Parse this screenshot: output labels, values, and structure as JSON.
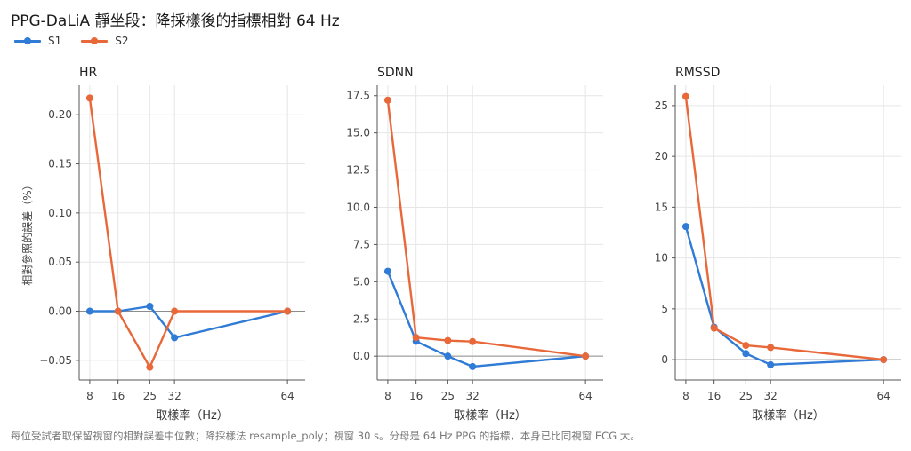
{
  "title": "PPG-DaLiA 靜坐段：降採樣後的指標相對 64 Hz",
  "legend": [
    {
      "name": "S1",
      "color": "#2f7bd6"
    },
    {
      "name": "S2",
      "color": "#e8683a"
    }
  ],
  "footnote": "每位受試者取保留視窗的相對誤差中位數；降採樣法 resample_poly；視窗 30 s。分母是 64 Hz PPG 的指標，本身已比同視窗 ECG 大。",
  "chart_data": [
    {
      "type": "line",
      "title": "HR",
      "xlabel": "取樣率（Hz）",
      "ylabel": "相對參照的誤差（%）",
      "x": [
        8,
        16,
        25,
        32,
        64
      ],
      "xticks": [
        "8",
        "16",
        "25",
        "32",
        "64"
      ],
      "xlim": [
        5,
        69
      ],
      "ylim": [
        -0.07,
        0.23
      ],
      "yticks": [
        -0.05,
        0.0,
        0.05,
        0.1,
        0.15,
        0.2
      ],
      "ytick_labels": [
        "−0.05",
        "0.00",
        "0.05",
        "0.10",
        "0.15",
        "0.20"
      ],
      "grid": true,
      "series": [
        {
          "name": "S1",
          "color": "#2f7bd6",
          "values": [
            0.0,
            0.0,
            0.005,
            -0.027,
            0.0
          ]
        },
        {
          "name": "S2",
          "color": "#e8683a",
          "values": [
            0.217,
            0.0,
            -0.057,
            0.0,
            0.0
          ]
        }
      ]
    },
    {
      "type": "line",
      "title": "SDNN",
      "xlabel": "取樣率（Hz）",
      "ylabel": "",
      "x": [
        8,
        16,
        25,
        32,
        64
      ],
      "xticks": [
        "8",
        "16",
        "25",
        "32",
        "64"
      ],
      "xlim": [
        5,
        69
      ],
      "ylim": [
        -1.6,
        18.2
      ],
      "yticks": [
        0.0,
        2.5,
        5.0,
        7.5,
        10.0,
        12.5,
        15.0,
        17.5
      ],
      "ytick_labels": [
        "0.0",
        "2.5",
        "5.0",
        "7.5",
        "10.0",
        "12.5",
        "15.0",
        "17.5"
      ],
      "grid": true,
      "series": [
        {
          "name": "S1",
          "color": "#2f7bd6",
          "values": [
            5.7,
            1.0,
            0.0,
            -0.7,
            0.0
          ]
        },
        {
          "name": "S2",
          "color": "#e8683a",
          "values": [
            17.2,
            1.25,
            1.05,
            0.98,
            0.0
          ]
        }
      ]
    },
    {
      "type": "line",
      "title": "RMSSD",
      "xlabel": "取樣率（Hz）",
      "ylabel": "",
      "x": [
        8,
        16,
        25,
        32,
        64
      ],
      "xticks": [
        "8",
        "16",
        "25",
        "32",
        "64"
      ],
      "xlim": [
        5,
        69
      ],
      "ylim": [
        -2,
        27
      ],
      "yticks": [
        0,
        5,
        10,
        15,
        20,
        25
      ],
      "ytick_labels": [
        "0",
        "5",
        "10",
        "15",
        "20",
        "25"
      ],
      "grid": true,
      "series": [
        {
          "name": "S1",
          "color": "#2f7bd6",
          "values": [
            13.1,
            3.2,
            0.6,
            -0.5,
            0.0
          ]
        },
        {
          "name": "S2",
          "color": "#e8683a",
          "values": [
            25.9,
            3.1,
            1.4,
            1.2,
            0.0
          ]
        }
      ]
    }
  ]
}
